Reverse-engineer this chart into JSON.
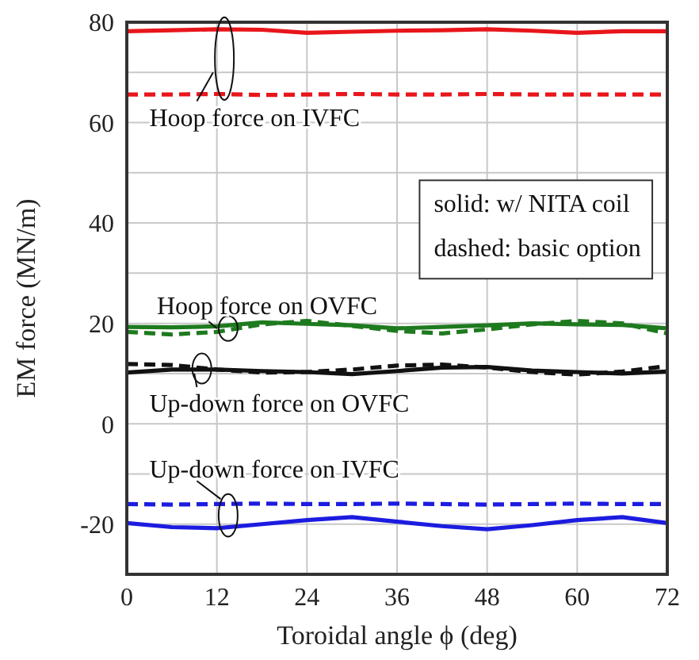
{
  "chart_data": {
    "type": "line",
    "xlabel": "Toroidal angle ϕ (deg)",
    "ylabel": "EM force (MN/m)",
    "x": [
      0,
      6,
      12,
      18,
      24,
      30,
      36,
      42,
      48,
      54,
      60,
      66,
      72
    ],
    "xlim": [
      0,
      72
    ],
    "xticks": [
      0,
      12,
      24,
      36,
      48,
      60,
      72
    ],
    "ylim": [
      -30,
      80
    ],
    "yticks": [
      {
        "value": -30,
        "label": null
      },
      -20,
      {
        "value": -10,
        "label": null
      },
      0,
      {
        "value": 10,
        "label": null
      },
      20,
      {
        "value": 30,
        "label": null
      },
      40,
      {
        "value": 50,
        "label": null
      },
      60,
      {
        "value": 70,
        "label": null
      },
      80
    ],
    "grid": true,
    "marker": "none",
    "series": [
      {
        "color": "#e8161b",
        "line_style": "solid",
        "values": [
          78.2,
          78.4,
          78.6,
          78.5,
          77.9,
          78.1,
          78.3,
          78.4,
          78.6,
          78.3,
          77.9,
          78.2,
          78.2
        ]
      },
      {
        "color": "#e8161b",
        "line_style": "dashed",
        "values": [
          65.6,
          65.6,
          65.7,
          65.5,
          65.6,
          65.7,
          65.6,
          65.6,
          65.7,
          65.6,
          65.6,
          65.6,
          65.6
        ]
      },
      {
        "color": "#1e7a1e",
        "line_style": "solid",
        "values": [
          19.3,
          19.2,
          19.4,
          20.2,
          19.9,
          19.6,
          19.0,
          19.3,
          19.6,
          20.0,
          19.8,
          19.7,
          19.0
        ]
      },
      {
        "color": "#1e7a1e",
        "line_style": "dashed",
        "values": [
          18.3,
          17.8,
          18.3,
          19.8,
          20.5,
          19.5,
          18.5,
          18.0,
          18.8,
          19.8,
          20.5,
          20.0,
          18.0
        ]
      },
      {
        "color": "#111111",
        "line_style": "solid",
        "values": [
          10.2,
          10.8,
          10.8,
          10.5,
          10.3,
          9.9,
          10.5,
          11.2,
          11.3,
          10.6,
          10.3,
          10.0,
          10.4
        ]
      },
      {
        "color": "#111111",
        "line_style": "dashed",
        "values": [
          11.9,
          11.7,
          10.8,
          10.2,
          10.3,
          10.8,
          11.6,
          11.8,
          11.2,
          10.3,
          9.8,
          10.4,
          11.5
        ]
      },
      {
        "color": "#1c1ce0",
        "line_style": "solid",
        "values": [
          -19.8,
          -20.6,
          -20.8,
          -20.0,
          -19.2,
          -18.6,
          -19.5,
          -20.4,
          -21.0,
          -20.2,
          -19.2,
          -18.6,
          -19.8
        ]
      },
      {
        "color": "#1c1ce0",
        "line_style": "dashed",
        "values": [
          -16.0,
          -16.1,
          -16.0,
          -15.9,
          -16.0,
          -16.0,
          -15.9,
          -16.0,
          -16.1,
          -16.0,
          -15.9,
          -16.0,
          -16.0
        ]
      }
    ],
    "annotations": [
      "Hoop force on IVFC",
      "Hoop force on OVFC",
      "Up-down force on OVFC",
      "Up-down force on IVFC",
      "solid: w/ NITA coil",
      "dashed: basic option"
    ]
  }
}
